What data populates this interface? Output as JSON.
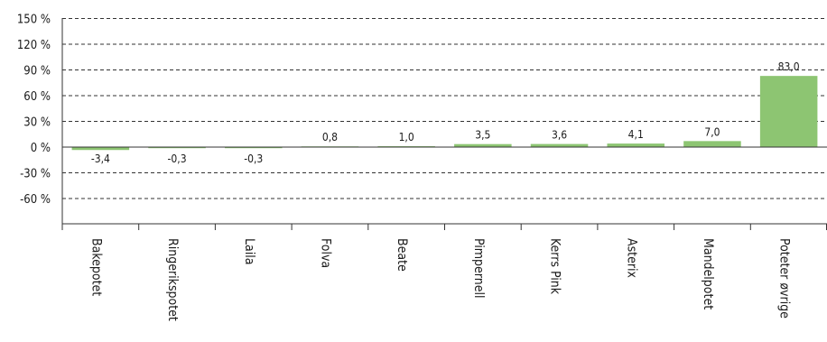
{
  "chart_data": {
    "type": "bar",
    "categories": [
      "Bakepotet",
      "Ringerikspotet",
      "Laila",
      "Folva",
      "Beate",
      "Pimpernell",
      "Kerrs Pink",
      "Asterix",
      "Mandelpotet",
      "Poteter øvrige"
    ],
    "values": [
      -3.4,
      -0.3,
      -0.3,
      0.8,
      1.0,
      3.5,
      3.6,
      4.1,
      7.0,
      83.0
    ],
    "data_labels": [
      "-3,4",
      "-0,3",
      "-0,3",
      "0,8",
      "1,0",
      "3,5",
      "3,6",
      "4,1",
      "7,0",
      "83,0"
    ],
    "y_ticks": [
      150,
      120,
      90,
      60,
      30,
      0,
      -30,
      -60
    ],
    "y_tick_labels": [
      "150 %",
      "120 %",
      "90 %",
      "60 %",
      "30 %",
      "0 %",
      "-30 %",
      "-60 %"
    ],
    "ylim": [
      -90,
      150
    ],
    "grid": true,
    "bar_color": "#8dc572"
  }
}
